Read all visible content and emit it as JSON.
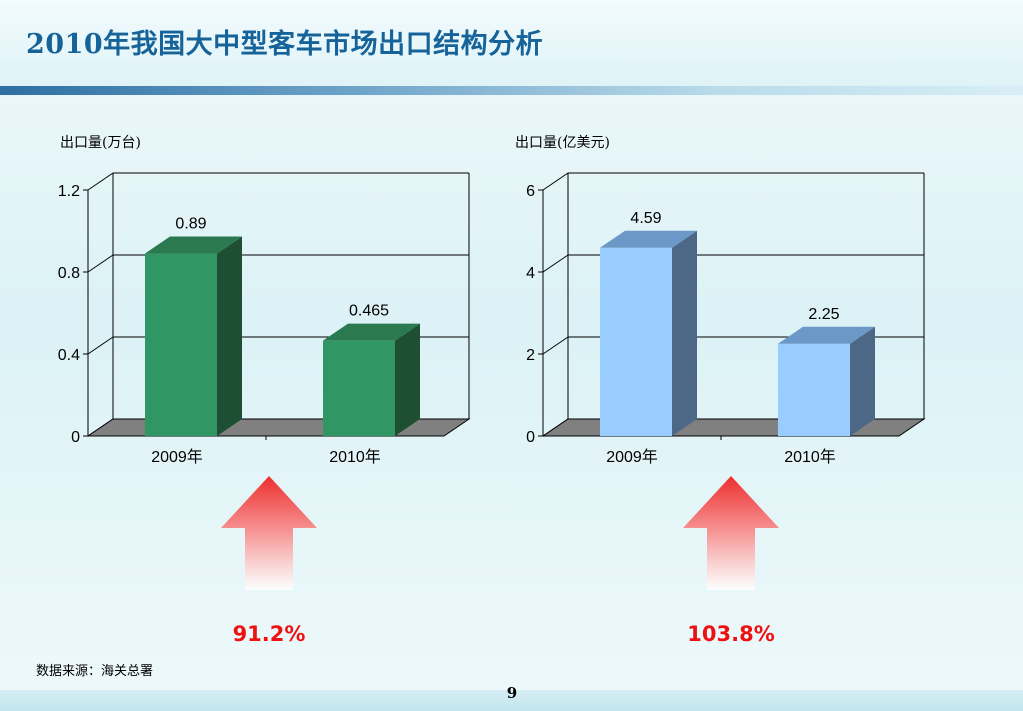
{
  "slide": {
    "title": "2010年我国大中型客车市场出口结构分析",
    "source": "数据来源：海关总署",
    "page_number": "9"
  },
  "colors": {
    "title": "#16639a",
    "green_front": "#2f9664",
    "green_side": "#1e4f33",
    "green_top": "#2b7a4f",
    "blue_front": "#99ccff",
    "blue_side": "#4d6886",
    "blue_top": "#6b98c6",
    "floor": "#808080",
    "percent": "#ee1111"
  },
  "chart_data": [
    {
      "type": "bar",
      "unit_label": "出口量(万台)",
      "categories": [
        "2009年",
        "2010年"
      ],
      "values": [
        0.89,
        0.465
      ],
      "value_labels": [
        "0.89",
        "0.465"
      ],
      "yticks": [
        "0",
        "0.4",
        "0.8",
        "1.2"
      ],
      "ylim": [
        0,
        1.2
      ],
      "grid": true,
      "style": "3d",
      "color": "green"
    },
    {
      "type": "bar",
      "unit_label": "出口量(亿美元)",
      "categories": [
        "2009年",
        "2010年"
      ],
      "values": [
        4.59,
        2.25
      ],
      "value_labels": [
        "4.59",
        "2.25"
      ],
      "yticks": [
        "0",
        "2",
        "4",
        "6"
      ],
      "ylim": [
        0,
        6
      ],
      "grid": true,
      "style": "3d",
      "color": "blue"
    }
  ],
  "growth": [
    {
      "label": "91.2%"
    },
    {
      "label": "103.8%"
    }
  ]
}
